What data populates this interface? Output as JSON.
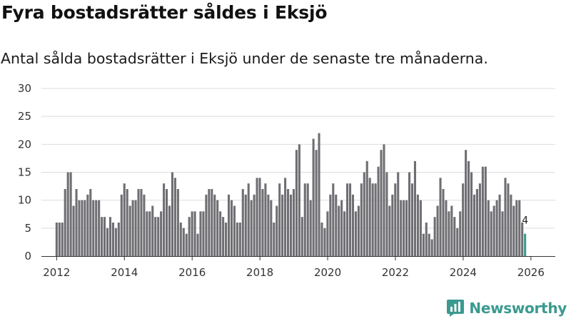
{
  "title": "Fyra bostadsrätter såldes i Eksjö",
  "subtitle": "Antal sålda bostadsrätter i Eksjö under de senaste tre månaderna.",
  "brand": {
    "name": "Newsworthy",
    "color": "#3a9a8f",
    "icon": "bar-chart-logo-icon"
  },
  "colors": {
    "bar": "#6e6e73",
    "highlight": "#3a9a8f",
    "grid": "#dddddd",
    "axis": "#333333"
  },
  "chart_data": {
    "type": "bar",
    "title": "Fyra bostadsrätter såldes i Eksjö",
    "subtitle": "Antal sålda bostadsrätter i Eksjö under de senaste tre månaderna.",
    "xlabel": "",
    "ylabel": "",
    "ylim": [
      0,
      30
    ],
    "yticks": [
      0,
      5,
      10,
      15,
      20,
      25,
      30
    ],
    "xlim": [
      2011.55,
      2026.72
    ],
    "xticks": [
      2012,
      2014,
      2016,
      2018,
      2020,
      2022,
      2024,
      2026
    ],
    "xtick_labels": [
      "2012",
      "2014",
      "2016",
      "2018",
      "2020",
      "2022",
      "2024",
      "2026"
    ],
    "x_start": 2012.0,
    "x_step": 0.0833,
    "grid": true,
    "values": [
      6,
      6,
      6,
      12,
      15,
      15,
      9,
      12,
      10,
      10,
      10,
      11,
      12,
      10,
      10,
      10,
      7,
      7,
      5,
      7,
      6,
      5,
      6,
      11,
      13,
      12,
      9,
      10,
      10,
      12,
      12,
      11,
      8,
      8,
      9,
      7,
      7,
      8,
      13,
      12,
      9,
      15,
      14,
      12,
      6,
      5,
      4,
      7,
      8,
      8,
      4,
      8,
      8,
      11,
      12,
      12,
      11,
      10,
      8,
      7,
      6,
      11,
      10,
      9,
      6,
      6,
      12,
      11,
      13,
      10,
      11,
      14,
      14,
      12,
      13,
      11,
      10,
      6,
      9,
      13,
      11,
      14,
      12,
      11,
      12,
      19,
      20,
      7,
      13,
      13,
      10,
      21,
      19,
      22,
      6,
      5,
      8,
      11,
      13,
      11,
      9,
      10,
      8,
      13,
      13,
      11,
      8,
      9,
      13,
      15,
      17,
      14,
      13,
      13,
      16,
      19,
      20,
      15,
      9,
      11,
      13,
      15,
      10,
      10,
      10,
      15,
      13,
      17,
      11,
      10,
      4,
      6,
      4,
      3,
      7,
      9,
      14,
      12,
      10,
      8,
      9,
      7,
      5,
      8,
      13,
      19,
      17,
      15,
      11,
      12,
      13,
      16,
      16,
      10,
      8,
      9,
      10,
      11,
      8,
      14,
      13,
      11,
      9,
      10,
      10,
      6,
      4
    ],
    "highlight_last": true,
    "annotations": [
      {
        "label": "4",
        "value": 4,
        "target": "last-bar"
      }
    ]
  }
}
